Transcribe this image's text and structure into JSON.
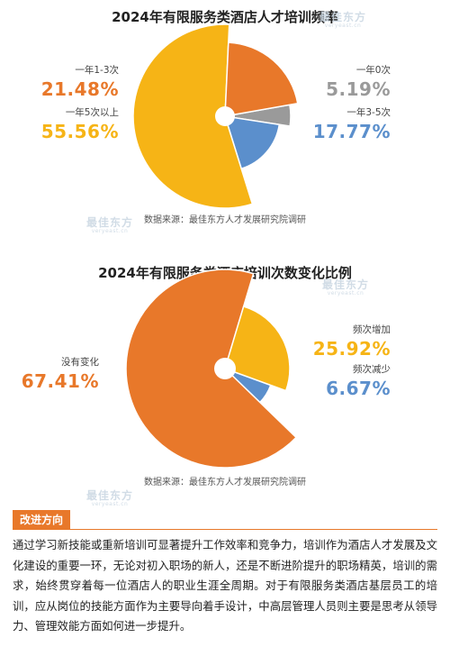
{
  "chart_data": [
    {
      "type": "pie",
      "title": "2024年有限服务类酒店人才培训频率",
      "source": "数据来源：最佳东方人才发展研究院调研",
      "slices": [
        {
          "label": "一年0次",
          "value": 5.19,
          "value_text": "5.19%",
          "color": "#9a9a9a"
        },
        {
          "label": "一年3-5次",
          "value": 17.77,
          "value_text": "17.77%",
          "color": "#5b8fcc"
        },
        {
          "label": "一年5次以上",
          "value": 55.56,
          "value_text": "55.56%",
          "color": "#f6b416"
        },
        {
          "label": "一年1-3次",
          "value": 21.48,
          "value_text": "21.48%",
          "color": "#e8782a"
        }
      ]
    },
    {
      "type": "pie",
      "title": "2024年有限服务类酒店培训次数变化比例",
      "source": "数据来源：最佳东方人才发展研究院调研",
      "slices": [
        {
          "label": "频次减少",
          "value": 6.67,
          "value_text": "6.67%",
          "color": "#5b8fcc"
        },
        {
          "label": "没有变化",
          "value": 67.41,
          "value_text": "67.41%",
          "color": "#e8782a"
        },
        {
          "label": "频次增加",
          "value": 25.92,
          "value_text": "25.92%",
          "color": "#f6b416"
        }
      ]
    }
  ],
  "watermark": {
    "name": "最佳东方",
    "url": "veryeast.cn"
  },
  "section": {
    "tag": "改进方向",
    "body": "通过学习新技能或重新培训可显著提升工作效率和竞争力，培训作为酒店人才发展及文化建设的重要一环，无论对初入职场的新人，还是不断进阶提升的职场精英，培训的需求，始终贯穿着每一位酒店人的职业生涯全周期。对于有限服务类酒店基层员工的培训，应从岗位的技能方面作为主要导向着手设计，中高层管理人员则主要是思考从领导力、管理效能方面如何进一步提升。"
  }
}
